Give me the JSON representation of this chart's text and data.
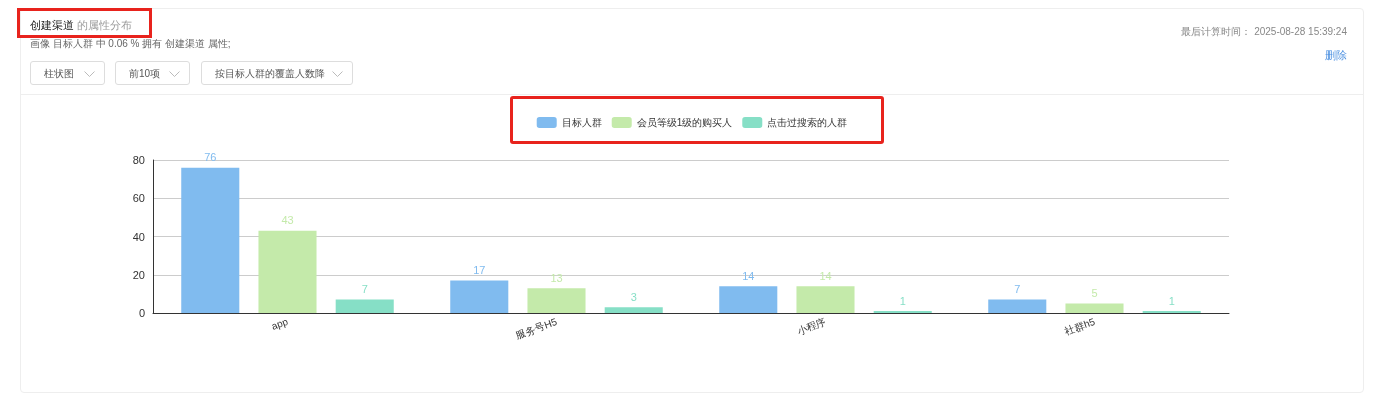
{
  "chart_data": {
    "type": "bar",
    "title": "创建渠道 的属性分布",
    "subtitle": "画像 目标人群 中 0.06 % 拥有 创建渠道 属性;",
    "annotations": [
      "最后计算时间： 2025-08-28 15:39:24",
      "删除",
      "柱状图",
      "前10项",
      "按目标人群的覆盖人数降"
    ],
    "categories": [
      "app",
      "服务号H5",
      "小程序",
      "社群h5"
    ],
    "series": [
      {
        "name": "目标人群",
        "color": "#80bbef",
        "values": [
          76,
          17,
          14,
          7
        ]
      },
      {
        "name": "会员等级1级的购买人",
        "color": "#c4eaaa",
        "values": [
          43,
          13,
          14,
          5
        ]
      },
      {
        "name": "点击过搜索的人群",
        "color": "#86dfc6",
        "values": [
          7,
          3,
          1,
          1
        ]
      }
    ],
    "ylim": [
      0,
      80
    ],
    "yticks": [
      0,
      20,
      40,
      60,
      80
    ],
    "grid": "y",
    "legend": "top",
    "data_labels": true
  }
}
